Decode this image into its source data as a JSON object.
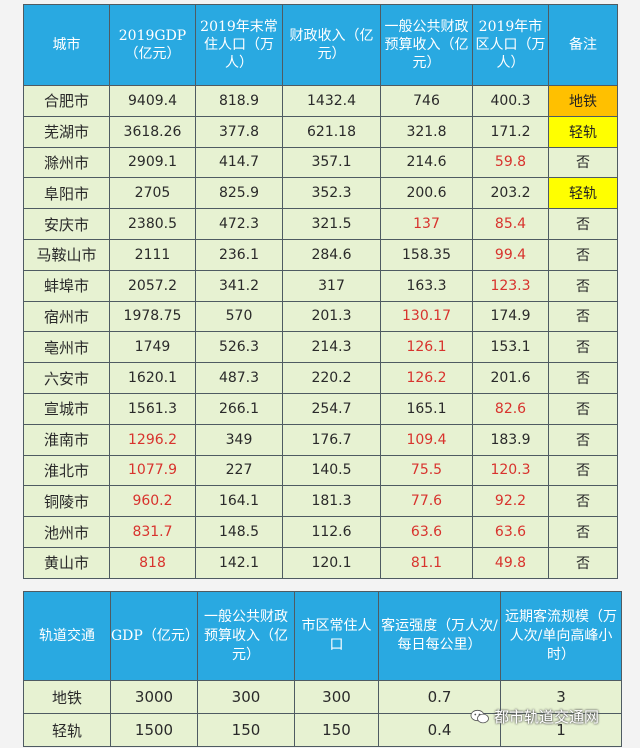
{
  "city_table": {
    "headers": [
      "城市",
      "2019GDP（亿元）",
      "2019年末常住人口（万人）",
      "财政收入（亿元）",
      "一般公共财政预算收入（亿元）",
      "2019年市区人口（万人）",
      "备注"
    ],
    "rows": [
      {
        "city": "合肥市",
        "gdp": "9409.4",
        "pop": "818.9",
        "fiscal": "1432.4",
        "budget": "746",
        "urban_pop": "400.3",
        "note": "地铁"
      },
      {
        "city": "芜湖市",
        "gdp": "3618.26",
        "pop": "377.8",
        "fiscal": "621.18",
        "budget": "321.8",
        "urban_pop": "171.2",
        "note": "轻轨"
      },
      {
        "city": "滁州市",
        "gdp": "2909.1",
        "pop": "414.7",
        "fiscal": "357.1",
        "budget": "214.6",
        "urban_pop": "59.8",
        "note": "否"
      },
      {
        "city": "阜阳市",
        "gdp": "2705",
        "pop": "825.9",
        "fiscal": "352.3",
        "budget": "200.6",
        "urban_pop": "203.2",
        "note": "轻轨"
      },
      {
        "city": "安庆市",
        "gdp": "2380.5",
        "pop": "472.3",
        "fiscal": "321.5",
        "budget": "137",
        "urban_pop": "85.4",
        "note": "否"
      },
      {
        "city": "马鞍山市",
        "gdp": "2111",
        "pop": "236.1",
        "fiscal": "284.6",
        "budget": "158.35",
        "urban_pop": "99.4",
        "note": "否"
      },
      {
        "city": "蚌埠市",
        "gdp": "2057.2",
        "pop": "341.2",
        "fiscal": "317",
        "budget": "163.3",
        "urban_pop": "123.3",
        "note": "否"
      },
      {
        "city": "宿州市",
        "gdp": "1978.75",
        "pop": "570",
        "fiscal": "201.3",
        "budget": "130.17",
        "urban_pop": "174.9",
        "note": "否"
      },
      {
        "city": "亳州市",
        "gdp": "1749",
        "pop": "526.3",
        "fiscal": "214.3",
        "budget": "126.1",
        "urban_pop": "153.1",
        "note": "否"
      },
      {
        "city": "六安市",
        "gdp": "1620.1",
        "pop": "487.3",
        "fiscal": "220.2",
        "budget": "126.2",
        "urban_pop": "201.6",
        "note": "否"
      },
      {
        "city": "宣城市",
        "gdp": "1561.3",
        "pop": "266.1",
        "fiscal": "254.7",
        "budget": "165.1",
        "urban_pop": "82.6",
        "note": "否"
      },
      {
        "city": "淮南市",
        "gdp": "1296.2",
        "pop": "349",
        "fiscal": "176.7",
        "budget": "109.4",
        "urban_pop": "183.9",
        "note": "否"
      },
      {
        "city": "淮北市",
        "gdp": "1077.9",
        "pop": "227",
        "fiscal": "140.5",
        "budget": "75.5",
        "urban_pop": "120.3",
        "note": "否"
      },
      {
        "city": "铜陵市",
        "gdp": "960.2",
        "pop": "164.1",
        "fiscal": "181.3",
        "budget": "77.6",
        "urban_pop": "92.2",
        "note": "否"
      },
      {
        "city": "池州市",
        "gdp": "831.7",
        "pop": "148.5",
        "fiscal": "112.6",
        "budget": "63.6",
        "urban_pop": "63.6",
        "note": "否"
      },
      {
        "city": "黄山市",
        "gdp": "818",
        "pop": "142.1",
        "fiscal": "120.1",
        "budget": "81.1",
        "urban_pop": "49.8",
        "note": "否"
      }
    ]
  },
  "standards_table": {
    "headers": [
      "轨道交通",
      "GDP（亿元）",
      "一般公共财政预算收入（亿元）",
      "市区常住人口",
      "客运强度（万人次/每日每公里）",
      "远期客流规模（万人次/单向高峰小时）"
    ],
    "rows": [
      {
        "type": "地铁",
        "gdp": "3000",
        "budget": "300",
        "urban_pop": "300",
        "intensity": "0.7",
        "flow": "3"
      },
      {
        "type": "轻轨",
        "gdp": "1500",
        "budget": "150",
        "urban_pop": "150",
        "intensity": "0.4",
        "flow": "1"
      }
    ]
  },
  "watermark": {
    "text": "都市轨道交通网",
    "icon": "wechat-icon"
  },
  "colors": {
    "header_bg": "#29a9e1",
    "cell_bg": "#e7f2d2",
    "highlight_red": "#d8332d",
    "subway_note_bg": "#ffc000",
    "lightrail_note_bg": "#ffff00"
  }
}
